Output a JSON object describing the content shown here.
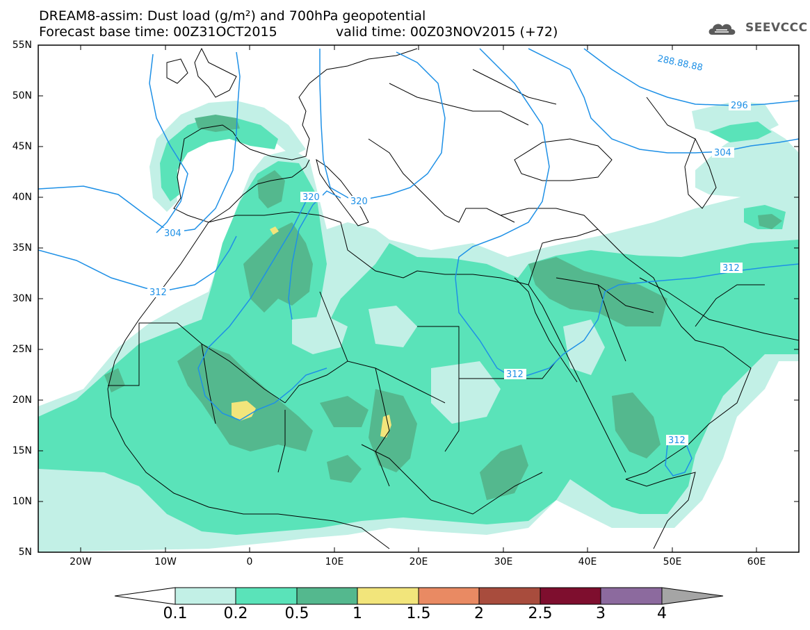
{
  "header": {
    "title_line1": "DREAM8-assim: Dust load (g/m²) and 700hPa geopotential",
    "forecast_base": "Forecast base time: 00Z31OCT2015",
    "valid_time": "valid time: 00Z03NOV2015 (+72)",
    "logo_text": "SEEVCCC"
  },
  "map": {
    "lat_labels": [
      "55N",
      "50N",
      "45N",
      "40N",
      "35N",
      "30N",
      "25N",
      "20N",
      "15N",
      "10N",
      "5N"
    ],
    "lon_labels": [
      "20W",
      "10W",
      "0",
      "10E",
      "20E",
      "30E",
      "40E",
      "50E",
      "60E"
    ],
    "contour_labels": [
      "288.88.88",
      "296",
      "304",
      "304",
      "320",
      "320",
      "312",
      "312",
      "312",
      "312"
    ],
    "colors": {
      "land_border": "#000000",
      "contour_line": "#1e90e6"
    }
  },
  "colorbar": {
    "labels": [
      "0.1",
      "0.2",
      "0.5",
      "1",
      "1.5",
      "2",
      "2.5",
      "3",
      "4"
    ],
    "colors": [
      "#c2f0e6",
      "#5ae3b9",
      "#54b88e",
      "#f2e57b",
      "#e98a63",
      "#a84c3d",
      "#7e0e2e",
      "#8c6a9e",
      "#a5a5a5"
    ]
  }
}
